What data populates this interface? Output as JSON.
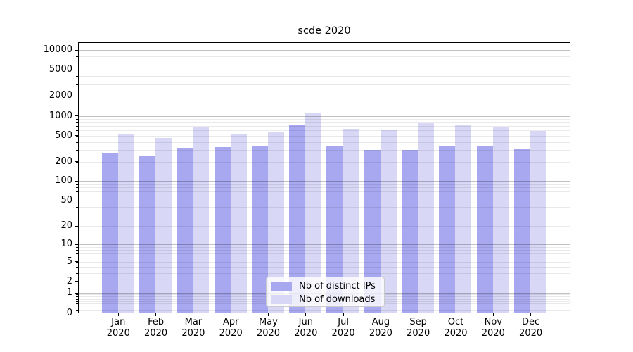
{
  "chart_data": {
    "type": "bar",
    "title": "scde 2020",
    "categories": [
      "Jan 2020",
      "Feb 2020",
      "Mar 2020",
      "Apr 2020",
      "May 2020",
      "Jun 2020",
      "Jul 2020",
      "Aug 2020",
      "Sep 2020",
      "Oct 2020",
      "Nov 2020",
      "Dec 2020"
    ],
    "x_tick_months": [
      "Jan",
      "Feb",
      "Mar",
      "Apr",
      "May",
      "Jun",
      "Jul",
      "Aug",
      "Sep",
      "Oct",
      "Nov",
      "Dec"
    ],
    "x_tick_year": "2020",
    "series": [
      {
        "name": "Nb of distinct IPs",
        "color": "#a8a8f0",
        "values": [
          270,
          240,
          325,
          330,
          345,
          730,
          350,
          300,
          305,
          340,
          350,
          320
        ]
      },
      {
        "name": "Nb of downloads",
        "color": "#d8d8f6",
        "values": [
          520,
          465,
          670,
          530,
          570,
          1100,
          640,
          610,
          775,
          710,
          675,
          590
        ]
      }
    ],
    "yscale": "log1p",
    "ylim": [
      0,
      13000
    ],
    "yticks": [
      0,
      1,
      2,
      5,
      10,
      20,
      50,
      100,
      200,
      500,
      1000,
      2000,
      5000,
      10000
    ],
    "grid": "both",
    "legend_position": "lower center",
    "colors": {
      "major_grid": "#c2c2c2",
      "minor_grid": "#e9e9e9",
      "spine": "#000000",
      "background": "#ffffff"
    }
  }
}
